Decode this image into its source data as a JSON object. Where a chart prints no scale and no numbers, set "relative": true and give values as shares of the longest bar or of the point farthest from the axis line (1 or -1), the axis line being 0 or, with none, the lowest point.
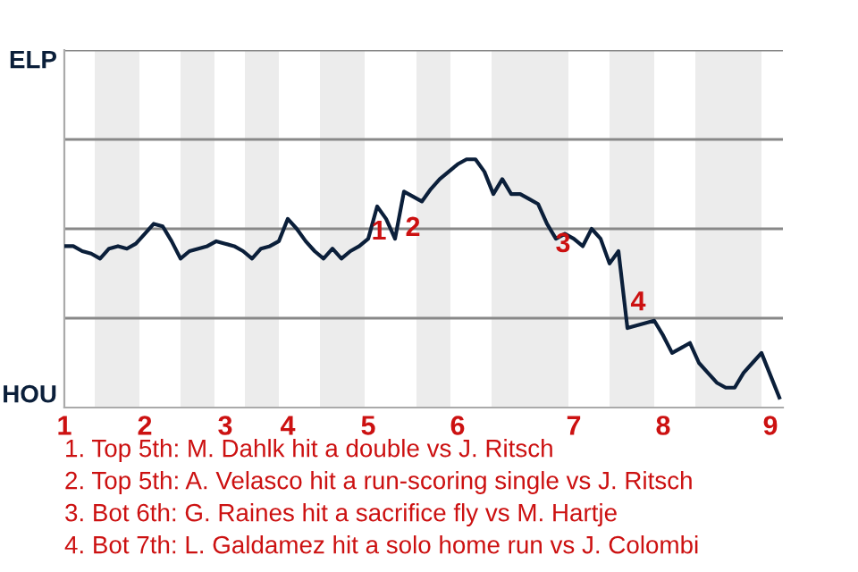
{
  "chart_data": {
    "type": "line",
    "relative": true,
    "categories": [
      "1",
      null,
      null,
      null,
      null,
      null,
      null,
      null,
      null,
      "2",
      null,
      null,
      null,
      null,
      null,
      null,
      null,
      null,
      "3",
      null,
      null,
      null,
      null,
      null,
      null,
      "4",
      null,
      null,
      null,
      null,
      null,
      null,
      null,
      null,
      "5",
      null,
      null,
      null,
      null,
      null,
      null,
      null,
      null,
      null,
      "6",
      null,
      null,
      null,
      null,
      null,
      null,
      null,
      null,
      null,
      null,
      null,
      null,
      "7",
      null,
      null,
      null,
      null,
      null,
      null,
      null,
      null,
      null,
      "8",
      null,
      null,
      null,
      null,
      null,
      null,
      null,
      null,
      null,
      null,
      null,
      "9",
      null
    ],
    "series": [
      {
        "color": "#0b1f3a",
        "values": [
          0.65,
          0.65,
          0.63,
          0.62,
          0.6,
          0.64,
          0.65,
          0.64,
          0.66,
          0.7,
          0.74,
          0.73,
          0.67,
          0.6,
          0.63,
          0.64,
          0.65,
          0.67,
          0.66,
          0.65,
          0.63,
          0.6,
          0.64,
          0.65,
          0.67,
          0.76,
          0.72,
          0.67,
          0.63,
          0.6,
          0.64,
          0.6,
          0.63,
          0.65,
          0.68,
          0.81,
          0.76,
          0.68,
          0.87,
          0.85,
          0.83,
          0.88,
          0.92,
          0.95,
          0.98,
          1,
          1,
          0.95,
          0.86,
          0.92,
          0.86,
          0.86,
          0.84,
          0.82,
          0.74,
          0.68,
          0.7,
          0.68,
          0.65,
          0.72,
          0.68,
          0.58,
          0.63,
          0.32,
          0.33,
          0.34,
          0.35,
          0.29,
          0.22,
          0.24,
          0.26,
          0.18,
          0.14,
          0.1,
          0.08,
          0.08,
          0.14,
          0.18,
          0.22,
          0.13,
          0.04
        ]
      }
    ],
    "ref_lines": [
      {
        "axis": "y",
        "value": 0.36,
        "color": "#888888"
      },
      {
        "axis": "y",
        "value": 0.72,
        "color": "#888888"
      },
      {
        "axis": "y",
        "value": 1.08,
        "color": "#888888"
      },
      {
        "axis": "y",
        "value": 1.44,
        "color": "#888888"
      }
    ],
    "annotations": [
      "ELP",
      "HOU",
      "1",
      "2",
      "3",
      "4",
      "1. Top 5th: M. Dahlk hit a double vs J. Ritsch",
      "2. Top 5th: A. Velasco hit a run-scoring single vs J. Ritsch",
      "3. Bot 6th: G. Raines hit a sacrifice fly vs M. Hartje",
      "4. Bot 7th: L. Galdamez hit a solo home run vs J. Colombi"
    ],
    "legend": false,
    "marker": "none",
    "line_style": "solid"
  }
}
